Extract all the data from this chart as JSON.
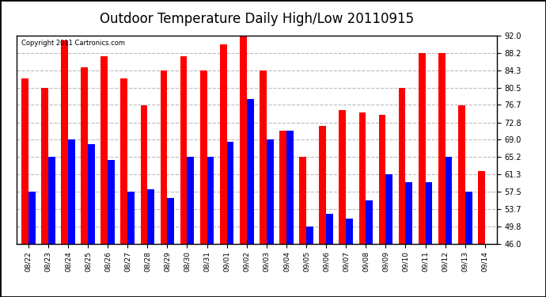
{
  "title": "Outdoor Temperature Daily High/Low 20110915",
  "copyright_text": "Copyright 2011 Cartronics.com",
  "dates": [
    "08/22",
    "08/23",
    "08/24",
    "08/25",
    "08/26",
    "08/27",
    "08/28",
    "08/29",
    "08/30",
    "08/31",
    "09/01",
    "09/02",
    "09/03",
    "09/04",
    "09/05",
    "09/06",
    "09/07",
    "09/08",
    "09/09",
    "09/10",
    "09/11",
    "09/12",
    "09/13",
    "09/14"
  ],
  "highs": [
    82.5,
    80.5,
    91.0,
    85.0,
    87.5,
    82.5,
    76.5,
    84.3,
    87.5,
    84.3,
    90.0,
    92.0,
    84.3,
    71.0,
    65.2,
    72.0,
    75.5,
    75.0,
    74.5,
    80.5,
    88.2,
    88.2,
    76.5,
    62.0
  ],
  "lows": [
    57.5,
    65.2,
    69.0,
    68.0,
    64.5,
    57.5,
    58.0,
    56.0,
    65.2,
    65.2,
    68.5,
    78.0,
    69.0,
    71.0,
    49.8,
    52.5,
    51.5,
    55.5,
    61.3,
    59.5,
    59.5,
    65.2,
    57.5,
    46.0
  ],
  "high_color": "#ff0000",
  "low_color": "#0000ff",
  "background_color": "#ffffff",
  "yticks": [
    46.0,
    49.8,
    53.7,
    57.5,
    61.3,
    65.2,
    69.0,
    72.8,
    76.7,
    80.5,
    84.3,
    88.2,
    92.0
  ],
  "ymin": 46.0,
  "ymax": 92.0,
  "grid_color": "#bbbbbb",
  "title_fontsize": 12,
  "bar_width": 0.35
}
